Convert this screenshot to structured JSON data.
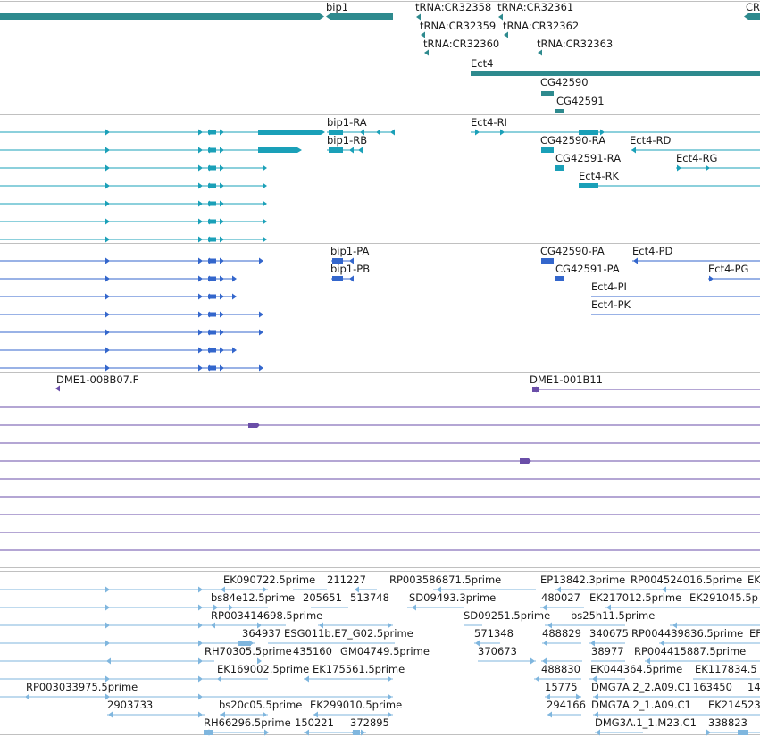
{
  "colors": {
    "gene": "#2e8a8e",
    "transcript": "#1aa0b8",
    "cds": "#3366cc",
    "clone": "#6a4ea8",
    "est": "#7fb6de",
    "divider": "#c0c0c0"
  },
  "tracks": {
    "gene": {
      "labels": [
        {
          "text": "bip1"
        },
        {
          "text": "tRNA:CR32358"
        },
        {
          "text": "tRNA:CR32361"
        },
        {
          "text": "CR"
        },
        {
          "text": "tRNA:CR32359"
        },
        {
          "text": "tRNA:CR32362"
        },
        {
          "text": "tRNA:CR32360"
        },
        {
          "text": "tRNA:CR32363"
        },
        {
          "text": "Ect4"
        },
        {
          "text": "CG42590"
        },
        {
          "text": "CG42591"
        }
      ]
    },
    "transcript": {
      "labels": [
        {
          "text": "bip1-RA"
        },
        {
          "text": "Ect4-RI"
        },
        {
          "text": "bip1-RB"
        },
        {
          "text": "CG42590-RA"
        },
        {
          "text": "Ect4-RD"
        },
        {
          "text": "CG42591-RA"
        },
        {
          "text": "Ect4-RG"
        },
        {
          "text": "Ect4-RK"
        }
      ]
    },
    "cds": {
      "labels": [
        {
          "text": "bip1-PA"
        },
        {
          "text": "CG42590-PA"
        },
        {
          "text": "Ect4-PD"
        },
        {
          "text": "bip1-PB"
        },
        {
          "text": "CG42591-PA"
        },
        {
          "text": "Ect4-PG"
        },
        {
          "text": "Ect4-PI"
        },
        {
          "text": "Ect4-PK"
        }
      ]
    },
    "clone": {
      "labels": [
        {
          "text": "DME1-008B07.F"
        },
        {
          "text": "DME1-001B11"
        }
      ]
    },
    "est": {
      "labels": [
        {
          "text": "EK090722.5prime"
        },
        {
          "text": "211227"
        },
        {
          "text": "RP003586871.5prime"
        },
        {
          "text": "EP13842.3prime"
        },
        {
          "text": "RP004524016.5prime"
        },
        {
          "text": "EK"
        },
        {
          "text": "bs84e12.5prime"
        },
        {
          "text": "205651"
        },
        {
          "text": "513748"
        },
        {
          "text": "SD09493.3prime"
        },
        {
          "text": "480027"
        },
        {
          "text": "EK217012.5prime"
        },
        {
          "text": "EK291045.5p"
        },
        {
          "text": "RP003414698.5prime"
        },
        {
          "text": "SD09251.5prime"
        },
        {
          "text": "bs25h11.5prime"
        },
        {
          "text": "364937"
        },
        {
          "text": "ESG011b.E7_G02.5prime"
        },
        {
          "text": "571348"
        },
        {
          "text": "488829"
        },
        {
          "text": "340675"
        },
        {
          "text": "RP004439836.5prime"
        },
        {
          "text": "EF"
        },
        {
          "text": "RH70305.5prime"
        },
        {
          "text": "435160"
        },
        {
          "text": "GM04749.5prime"
        },
        {
          "text": "370673"
        },
        {
          "text": "38977"
        },
        {
          "text": "RP004415887.5prime"
        },
        {
          "text": "EK169002.5prime"
        },
        {
          "text": "EK175561.5prime"
        },
        {
          "text": "488830"
        },
        {
          "text": "EK044364.5prime"
        },
        {
          "text": "EK117834.5"
        },
        {
          "text": "RP003033975.5prime"
        },
        {
          "text": "15775"
        },
        {
          "text": "DMG7A.2_2.A09.C1"
        },
        {
          "text": "163450"
        },
        {
          "text": "14"
        },
        {
          "text": "2903733"
        },
        {
          "text": "bs20c05.5prime"
        },
        {
          "text": "EK299010.5prime"
        },
        {
          "text": "294166"
        },
        {
          "text": "DMG7A.2_1.A09.C1"
        },
        {
          "text": "EK214523"
        },
        {
          "text": "RH66296.5prime"
        },
        {
          "text": "150221"
        },
        {
          "text": "372895"
        },
        {
          "text": "DMG3A.1_1.M23.C1"
        },
        {
          "text": "338823"
        }
      ]
    }
  }
}
